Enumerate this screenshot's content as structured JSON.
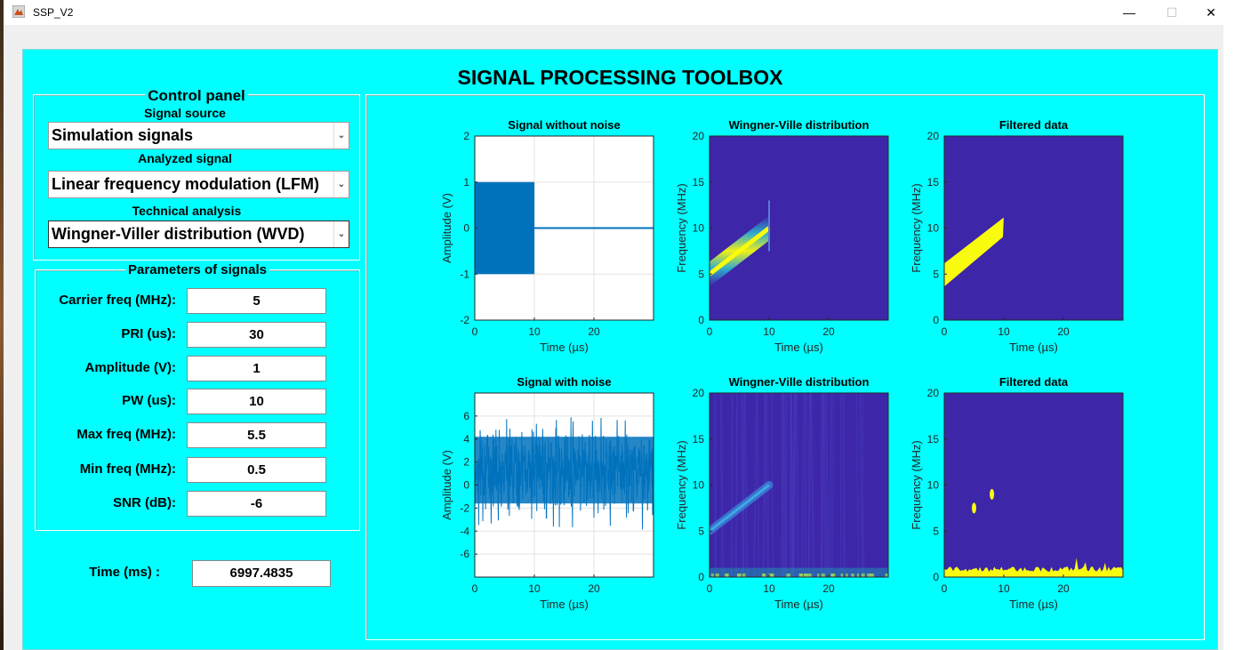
{
  "window": {
    "title": "SSP_V2",
    "minimize": "—",
    "maximize": "☐",
    "close": "✕"
  },
  "app": {
    "title": "SIGNAL PROCESSING TOOLBOX"
  },
  "control_panel": {
    "title": "Control panel",
    "signal_source_label": "Signal source",
    "signal_source_value": "Simulation signals",
    "analyzed_signal_label": "Analyzed signal",
    "analyzed_signal_value": "Linear frequency modulation (LFM)",
    "technical_analysis_label": "Technical analysis",
    "technical_analysis_value": "Wingner-Viller distribution (WVD)",
    "dropdown_arrow": "⌄"
  },
  "parameters": {
    "title": "Parameters of signals",
    "rows": [
      {
        "label": "Carrier freq (MHz):",
        "value": "5"
      },
      {
        "label": "PRI (us):",
        "value": "30"
      },
      {
        "label": "Amplitude (V):",
        "value": "1"
      },
      {
        "label": "PW (us):",
        "value": "10"
      },
      {
        "label": "Max freq (MHz):",
        "value": "5.5"
      },
      {
        "label": "Min freq (MHz):",
        "value": "0.5"
      },
      {
        "label": "SNR (dB):",
        "value": "-6"
      }
    ]
  },
  "time": {
    "label": "Time (ms) :",
    "value": "6997.4835"
  },
  "colors": {
    "frame": "#00ffff",
    "heat_bg": "#3d26a8",
    "heat_hot": "#f9fb0e",
    "signal": "#0072bd"
  },
  "chart_data": [
    {
      "type": "line",
      "title": "Signal without noise",
      "xlabel": "Time (µs)",
      "ylabel": "Amplitude (V)",
      "xlim": [
        0,
        30
      ],
      "ylim": [
        -2,
        2
      ],
      "xticks": [
        "0",
        "10",
        "20"
      ],
      "yticks": [
        "-2",
        "-1",
        "0",
        "1",
        "2"
      ],
      "grid": true,
      "series": [
        {
          "pulse_start": 0,
          "pulse_end": 10,
          "amplitude": 1,
          "baseline": 0
        }
      ]
    },
    {
      "type": "heatmap",
      "title": "Wingner-Ville distribution",
      "xlabel": "Time (µs)",
      "ylabel": "Frequency (MHz)",
      "xlim": [
        0,
        30
      ],
      "ylim": [
        0,
        20
      ],
      "xticks": [
        "0",
        "10",
        "20"
      ],
      "yticks": [
        "0",
        "5",
        "10",
        "15",
        "20"
      ],
      "features": [
        {
          "kind": "chirp_line",
          "t_start": 0,
          "f_start": 5,
          "t_end": 10,
          "f_end": 10
        }
      ]
    },
    {
      "type": "heatmap",
      "title": "Filtered data",
      "xlabel": "Time (µs)",
      "ylabel": "Frequency (MHz)",
      "xlim": [
        0,
        30
      ],
      "ylim": [
        0,
        20
      ],
      "xticks": [
        "0",
        "10",
        "20"
      ],
      "yticks": [
        "0",
        "5",
        "10",
        "15",
        "20"
      ],
      "features": [
        {
          "kind": "chirp_band",
          "t_start": 0,
          "f_start": 5,
          "t_end": 10,
          "f_end": 10
        }
      ]
    },
    {
      "type": "line",
      "title": "Signal with noise",
      "xlabel": "Time (µs)",
      "ylabel": "Amplitude (V)",
      "xlim": [
        0,
        30
      ],
      "ylim": [
        -8,
        8
      ],
      "xticks": [
        "0",
        "10",
        "20"
      ],
      "yticks": [
        "-6",
        "-4",
        "-2",
        "0",
        "2",
        "4",
        "6"
      ],
      "grid": true,
      "series": [
        {
          "noise_center": 1,
          "noise_low": -3,
          "noise_high": 6
        }
      ]
    },
    {
      "type": "heatmap",
      "title": "Wingner-Ville distribution",
      "xlabel": "Time (µs)",
      "ylabel": "Frequency (MHz)",
      "xlim": [
        0,
        30
      ],
      "ylim": [
        0,
        20
      ],
      "xticks": [
        "0",
        "10",
        "20"
      ],
      "yticks": [
        "0",
        "5",
        "10",
        "15",
        "20"
      ],
      "features": [
        {
          "kind": "faint_chirp",
          "t_start": 0,
          "f_start": 5,
          "t_end": 10,
          "f_end": 10
        },
        {
          "kind": "low_freq_noise",
          "f_max": 1
        }
      ]
    },
    {
      "type": "heatmap",
      "title": "Filtered data",
      "xlabel": "Time (µs)",
      "ylabel": "Frequency (MHz)",
      "xlim": [
        0,
        30
      ],
      "ylim": [
        0,
        20
      ],
      "xticks": [
        "0",
        "10",
        "20"
      ],
      "yticks": [
        "0",
        "5",
        "10",
        "15",
        "20"
      ],
      "features": [
        {
          "kind": "blob",
          "t": 5,
          "f": 7.5
        },
        {
          "kind": "blob",
          "t": 8,
          "f": 9
        },
        {
          "kind": "low_freq_noise",
          "f_max": 1
        }
      ]
    }
  ]
}
